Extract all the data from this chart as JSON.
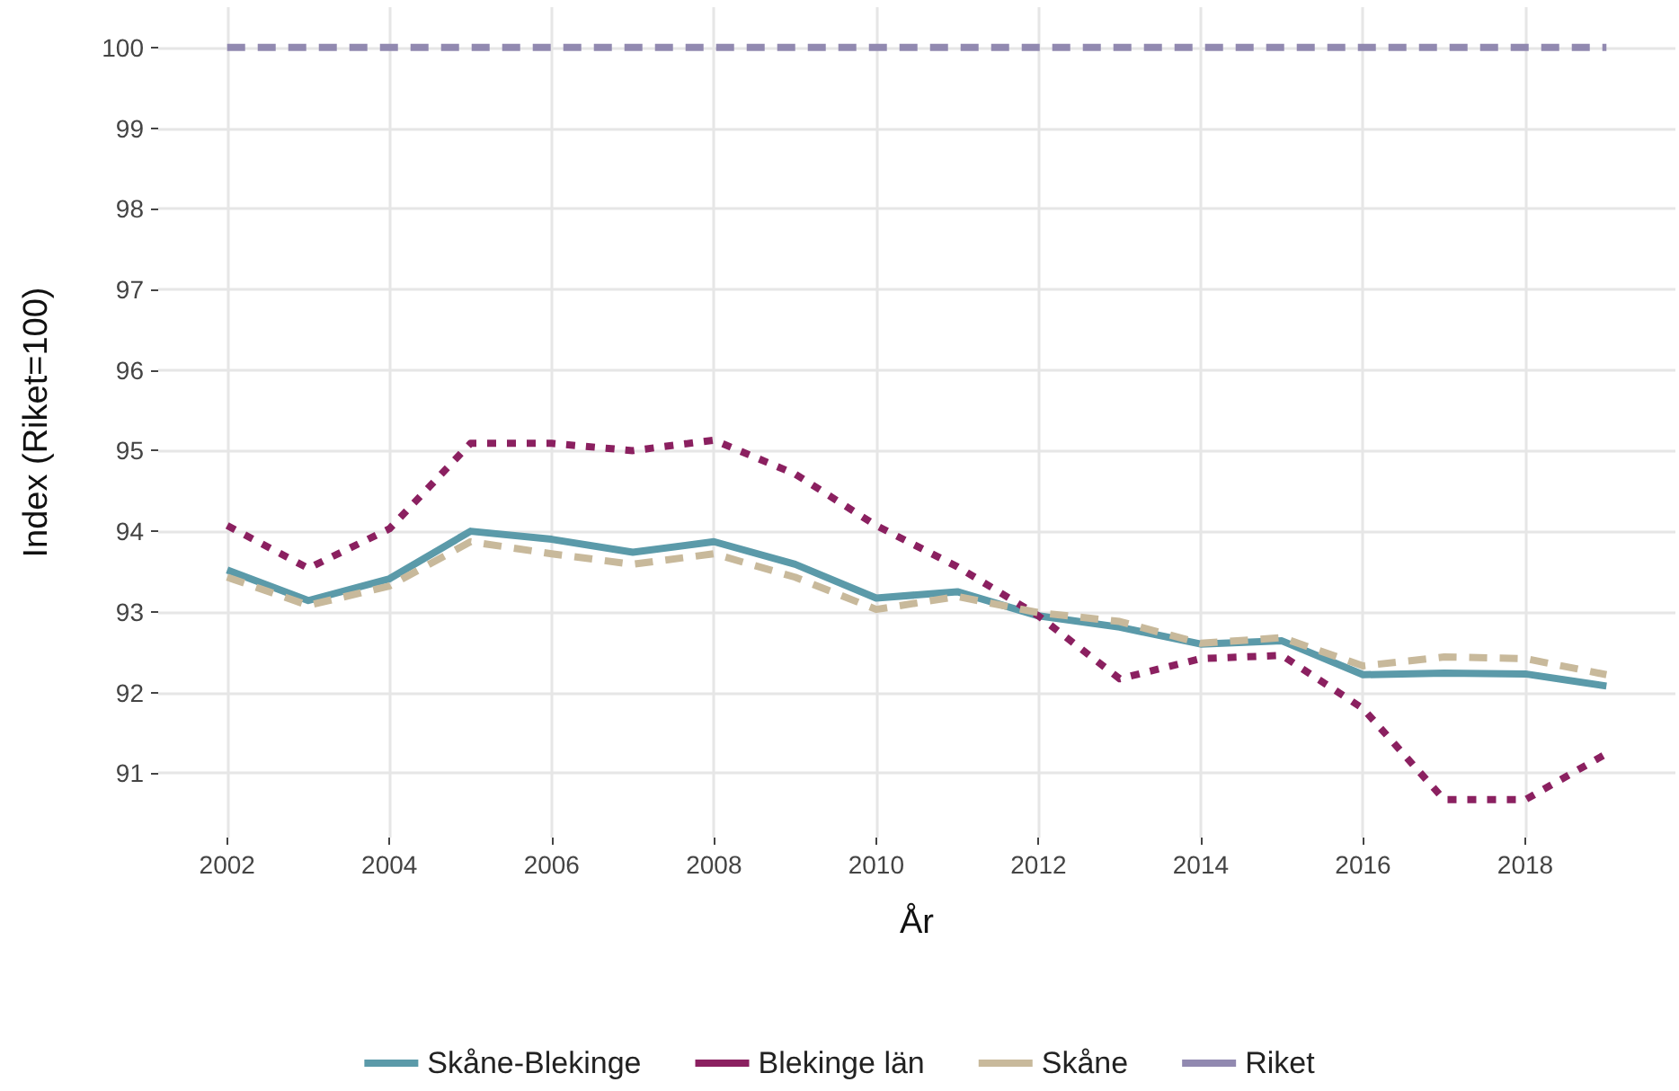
{
  "chart_data": {
    "type": "line",
    "xlabel": "År",
    "ylabel": "Index (Riket=100)",
    "x": [
      2002,
      2003,
      2004,
      2005,
      2006,
      2007,
      2008,
      2009,
      2010,
      2011,
      2012,
      2013,
      2014,
      2015,
      2016,
      2017,
      2018,
      2019
    ],
    "series": [
      {
        "name": "Skåne-Blekinge",
        "color": "#5b9aa9",
        "line_style": "solid",
        "values": [
          93.52,
          93.14,
          93.41,
          94.0,
          93.9,
          93.74,
          93.87,
          93.59,
          93.17,
          93.25,
          92.95,
          92.81,
          92.6,
          92.64,
          92.22,
          92.24,
          92.23,
          92.08
        ]
      },
      {
        "name": "Blekinge län",
        "color": "#8b2060",
        "line_style": "dotted",
        "values": [
          94.07,
          93.54,
          94.03,
          95.09,
          95.09,
          95.0,
          95.13,
          94.71,
          94.07,
          93.56,
          92.95,
          92.17,
          92.42,
          92.46,
          91.8,
          90.67,
          90.67,
          91.24
        ]
      },
      {
        "name": "Skåne",
        "color": "#c8b99b",
        "line_style": "dashed",
        "values": [
          93.43,
          93.08,
          93.32,
          93.87,
          93.72,
          93.59,
          93.72,
          93.43,
          93.03,
          93.19,
          92.99,
          92.88,
          92.61,
          92.68,
          92.33,
          92.44,
          92.42,
          92.22
        ]
      },
      {
        "name": "Riket",
        "color": "#9189b0",
        "line_style": "dashed",
        "values": [
          100,
          100,
          100,
          100,
          100,
          100,
          100,
          100,
          100,
          100,
          100,
          100,
          100,
          100,
          100,
          100,
          100,
          100
        ]
      }
    ],
    "xlim": [
      2001.15,
      2019.85
    ],
    "xticks": [
      2002,
      2004,
      2006,
      2008,
      2010,
      2012,
      2014,
      2016,
      2018
    ],
    "ylim": [
      90.2,
      100.5
    ],
    "yticks": [
      91,
      92,
      93,
      94,
      95,
      96,
      97,
      98,
      99,
      100
    ],
    "grid": true,
    "legend": "bottom",
    "marker": "none"
  }
}
